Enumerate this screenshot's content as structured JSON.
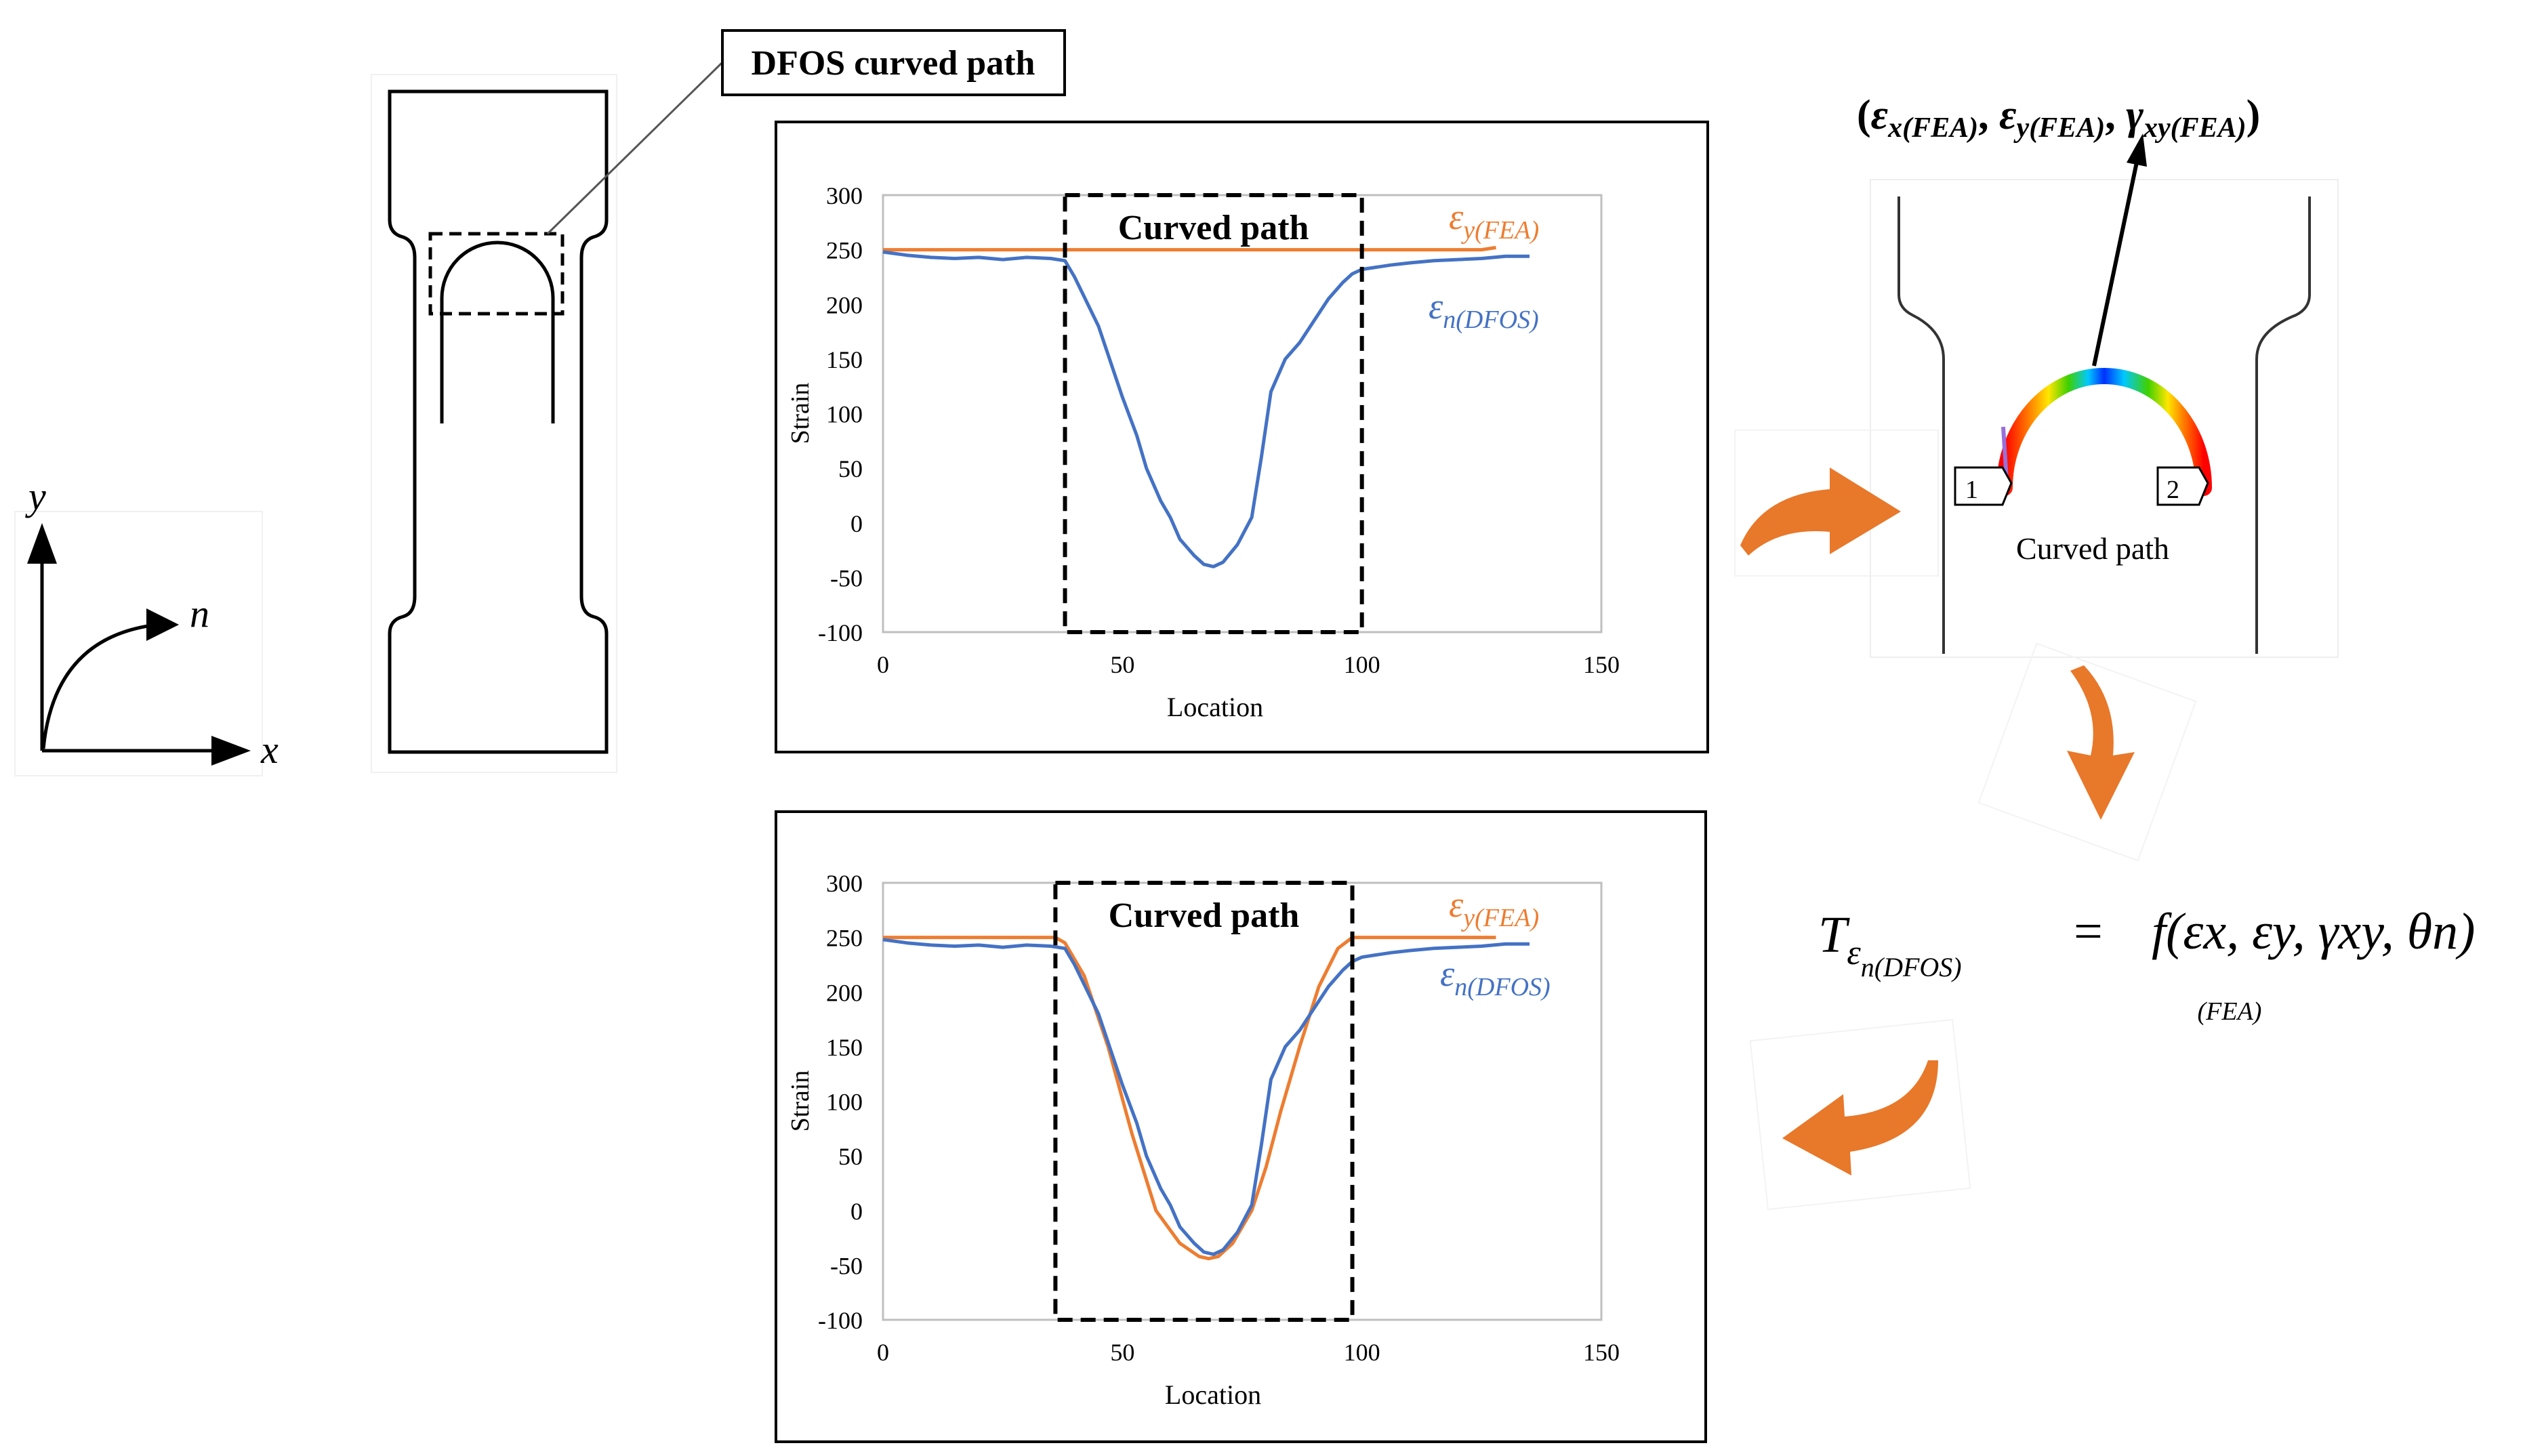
{
  "colors": {
    "fea": "#ED7D31",
    "dfos": "#4472C4",
    "arrow": "#E8782A",
    "black": "#000000"
  },
  "labels": {
    "dfos_callout": "DFOS curved path",
    "axis_x": "x",
    "axis_y": "y",
    "axis_n": "n",
    "fea_tuple": "(εx(FEA), εy(FEA), γxy(FEA))",
    "fea_tuple_open": "(",
    "fea_tuple_close": ")",
    "eps": "ε",
    "gamma": "γ",
    "sub_x_fea": "x(FEA)",
    "sub_y_fea": "y(FEA)",
    "sub_xy_fea": "xy(FEA)",
    "curved_path": "Curved path",
    "node_1": "1",
    "node_2": "2",
    "eq_T": "T",
    "eq_sub": "n(DFOS)",
    "eq_eq": "=",
    "eq_f": "f(εx, εy, γxy, θn)",
    "eq_fea": "(FEA)"
  },
  "chart_data": [
    {
      "type": "line",
      "title": "",
      "xlabel": "Location",
      "ylabel": "Strain",
      "xlim": [
        0,
        150
      ],
      "ylim": [
        -100,
        300
      ],
      "xticks": [
        0,
        50,
        100,
        150
      ],
      "yticks": [
        -100,
        -50,
        0,
        50,
        100,
        150,
        200,
        250,
        300
      ],
      "box_label": "Curved path",
      "box_range": [
        38,
        100
      ],
      "series": [
        {
          "name": "εy(FEA)",
          "legend_main": "ε",
          "legend_sub": "y(FEA)",
          "color": "#ED7D31",
          "x": [
            0,
            10,
            20,
            30,
            38,
            100,
            110,
            120,
            125,
            128
          ],
          "y": [
            250,
            250,
            250,
            250,
            250,
            250,
            250,
            250,
            250,
            252
          ]
        },
        {
          "name": "εn(DFOS)",
          "legend_main": "ε",
          "legend_sub": "n(DFOS)",
          "color": "#4472C4",
          "x": [
            0,
            5,
            10,
            15,
            20,
            25,
            30,
            35,
            38,
            40,
            45,
            50,
            53,
            55,
            58,
            60,
            62,
            65,
            67,
            69,
            71,
            74,
            77,
            79,
            81,
            84,
            87,
            90,
            93,
            96,
            98,
            100,
            103,
            106,
            110,
            115,
            120,
            125,
            130,
            135
          ],
          "y": [
            248,
            245,
            243,
            242,
            243,
            241,
            243,
            242,
            240,
            225,
            180,
            115,
            80,
            50,
            20,
            5,
            -15,
            -30,
            -38,
            -40,
            -36,
            -20,
            5,
            60,
            120,
            150,
            165,
            185,
            205,
            220,
            228,
            232,
            234,
            236,
            238,
            240,
            241,
            242,
            244,
            244
          ]
        }
      ]
    },
    {
      "type": "line",
      "title": "",
      "xlabel": "Location",
      "ylabel": "Strain",
      "xlim": [
        0,
        150
      ],
      "ylim": [
        -100,
        300
      ],
      "xticks": [
        0,
        50,
        100,
        150
      ],
      "yticks": [
        -100,
        -50,
        0,
        50,
        100,
        150,
        200,
        250,
        300
      ],
      "box_label": "Curved path",
      "box_range": [
        36,
        98
      ],
      "series": [
        {
          "name": "εy(FEA)",
          "legend_main": "ε",
          "legend_sub": "y(FEA)",
          "color": "#ED7D31",
          "x": [
            0,
            10,
            20,
            30,
            36,
            38,
            42,
            47,
            52,
            57,
            62,
            66,
            68,
            70,
            73,
            77,
            80,
            83,
            87,
            91,
            95,
            98,
            100,
            110,
            120,
            125,
            128
          ],
          "y": [
            250,
            250,
            250,
            250,
            250,
            245,
            215,
            150,
            70,
            0,
            -30,
            -42,
            -44,
            -42,
            -30,
            0,
            40,
            90,
            150,
            205,
            240,
            250,
            250,
            250,
            250,
            250,
            250
          ]
        },
        {
          "name": "εn(DFOS)",
          "legend_main": "ε",
          "legend_sub": "n(DFOS)",
          "color": "#4472C4",
          "x": [
            0,
            5,
            10,
            15,
            20,
            25,
            30,
            35,
            38,
            40,
            45,
            50,
            53,
            55,
            58,
            60,
            62,
            65,
            67,
            69,
            71,
            74,
            77,
            79,
            81,
            84,
            87,
            90,
            93,
            96,
            98,
            100,
            103,
            106,
            110,
            115,
            120,
            125,
            130,
            135
          ],
          "y": [
            248,
            245,
            243,
            242,
            243,
            241,
            243,
            242,
            240,
            225,
            180,
            115,
            80,
            50,
            20,
            5,
            -15,
            -30,
            -38,
            -40,
            -36,
            -20,
            5,
            60,
            120,
            150,
            165,
            185,
            205,
            220,
            228,
            232,
            234,
            236,
            238,
            240,
            241,
            242,
            244,
            244
          ]
        }
      ]
    }
  ]
}
